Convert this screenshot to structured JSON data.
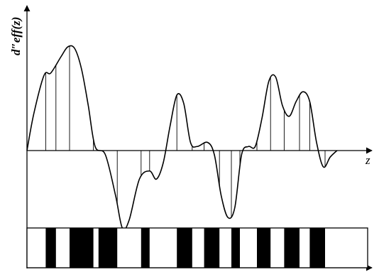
{
  "figure": {
    "y_label": "d″eff(z)",
    "x_label": "z",
    "line_color": "#000000",
    "curve": {
      "description_points": [
        [
          0,
          0
        ],
        [
          0.02,
          0.45
        ],
        [
          0.05,
          0.92
        ],
        [
          0.07,
          0.95
        ],
        [
          0.1,
          1.15
        ],
        [
          0.12,
          1.27
        ],
        [
          0.14,
          1.25
        ],
        [
          0.16,
          1.0
        ],
        [
          0.18,
          0.55
        ],
        [
          0.2,
          0.05
        ],
        [
          0.23,
          -0.05
        ],
        [
          0.26,
          -0.55
        ],
        [
          0.28,
          -0.95
        ],
        [
          0.3,
          -0.85
        ],
        [
          0.33,
          -0.35
        ],
        [
          0.36,
          -0.25
        ],
        [
          0.38,
          -0.35
        ],
        [
          0.4,
          -0.15
        ],
        [
          0.42,
          0.3
        ],
        [
          0.44,
          0.68
        ],
        [
          0.46,
          0.58
        ],
        [
          0.48,
          0.1
        ],
        [
          0.5,
          0.05
        ],
        [
          0.53,
          0.1
        ],
        [
          0.55,
          -0.05
        ],
        [
          0.57,
          -0.55
        ],
        [
          0.59,
          -0.82
        ],
        [
          0.61,
          -0.7
        ],
        [
          0.63,
          -0.05
        ],
        [
          0.65,
          0.05
        ],
        [
          0.67,
          0.05
        ],
        [
          0.69,
          0.4
        ],
        [
          0.71,
          0.85
        ],
        [
          0.73,
          0.9
        ],
        [
          0.75,
          0.55
        ],
        [
          0.77,
          0.42
        ],
        [
          0.79,
          0.6
        ],
        [
          0.81,
          0.72
        ],
        [
          0.83,
          0.6
        ],
        [
          0.85,
          0.1
        ],
        [
          0.87,
          -0.2
        ],
        [
          0.89,
          -0.08
        ],
        [
          0.91,
          0.0
        ]
      ]
    },
    "stripes": {
      "blocks": [
        {
          "start": 0.055,
          "end": 0.085
        },
        {
          "start": 0.125,
          "end": 0.195
        },
        {
          "start": 0.21,
          "end": 0.265
        },
        {
          "start": 0.335,
          "end": 0.36
        },
        {
          "start": 0.44,
          "end": 0.485
        },
        {
          "start": 0.52,
          "end": 0.565
        },
        {
          "start": 0.6,
          "end": 0.625
        },
        {
          "start": 0.675,
          "end": 0.715
        },
        {
          "start": 0.755,
          "end": 0.8
        },
        {
          "start": 0.83,
          "end": 0.875
        }
      ]
    }
  }
}
